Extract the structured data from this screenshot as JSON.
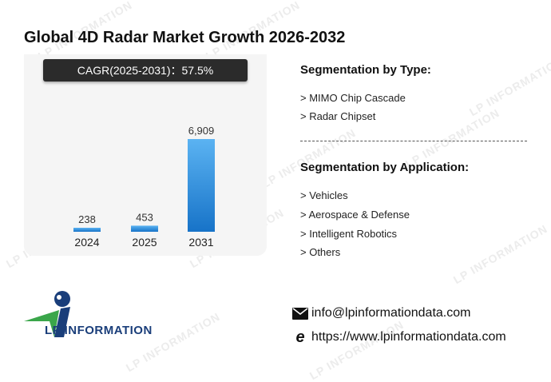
{
  "title": "Global 4D Radar Market Growth 2026-2032",
  "cagr": "CAGR(2025-2031)：57.5%",
  "chart_data": {
    "type": "bar",
    "categories": [
      "2024",
      "2025",
      "2031"
    ],
    "values": [
      238,
      453,
      6909
    ],
    "value_labels": [
      "238",
      "453",
      "6,909"
    ],
    "title": "Global 4D Radar Market Growth 2026-2032",
    "xlabel": "",
    "ylabel": "",
    "grid": false,
    "bar_color": "#2a8ce0"
  },
  "segmentation_type": {
    "heading": "Segmentation by Type:",
    "items": [
      "> MIMO Chip Cascade",
      "> Radar Chipset"
    ]
  },
  "segmentation_application": {
    "heading": "Segmentation by Application:",
    "items": [
      "> Vehicles",
      "> Aerospace & Defense",
      "> Intelligent Robotics",
      "> Others"
    ]
  },
  "logo": {
    "text": "LP INFORMATION",
    "icon": "lp-information-logo"
  },
  "watermark": "LP INFORMATION",
  "contact": {
    "email": "info@lpinformationdata.com",
    "email_icon": "envelope-icon",
    "website": "https://www.lpinformationdata.com",
    "website_icon": "browser-e-icon"
  },
  "colors": {
    "bar_top": "#5bb3f2",
    "bar_bottom": "#1773c8",
    "logo_blue": "#1a3e7a",
    "logo_green": "#3aa64a"
  }
}
